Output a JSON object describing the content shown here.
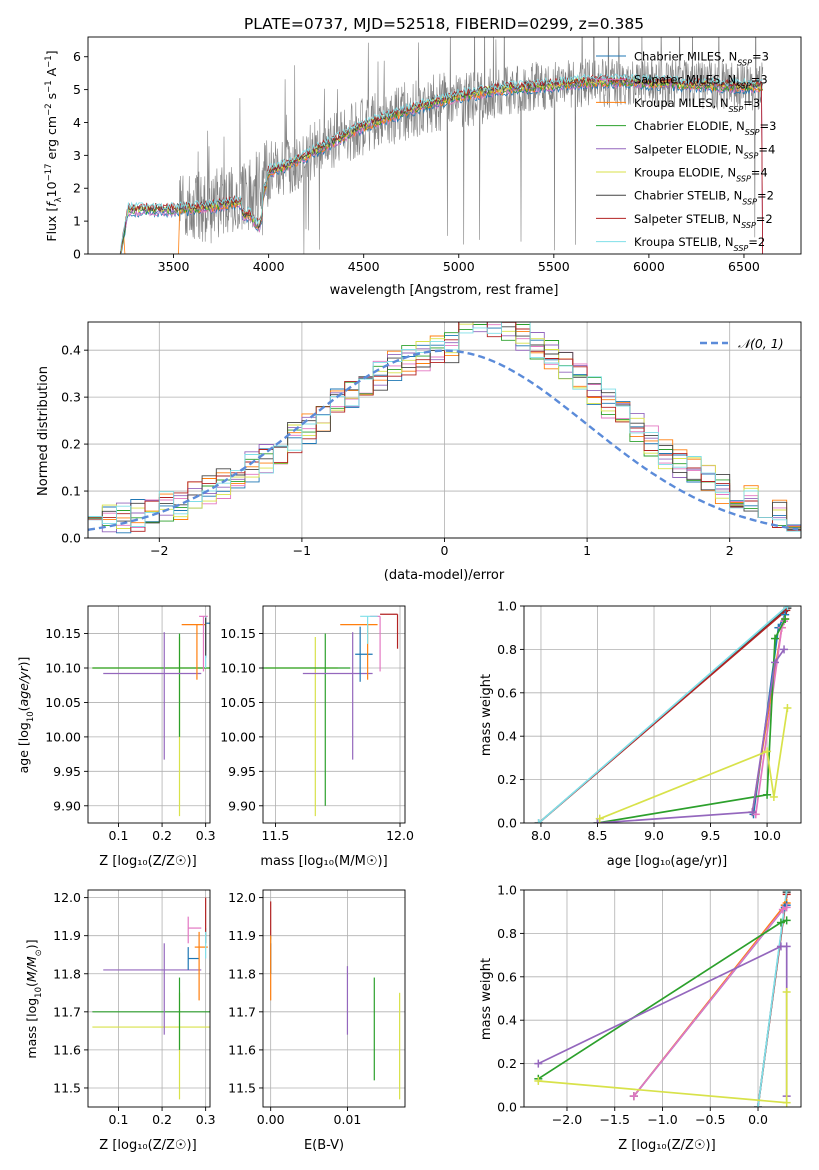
{
  "colors": {
    "Chabrier MILES": "#1f77b4",
    "Salpeter MILES": "#e377c2",
    "Kroupa MILES": "#ff7f0e",
    "Chabrier ELODIE": "#2ca02c",
    "Salpeter ELODIE": "#9467bd",
    "Kroupa ELODIE": "#d8e24a",
    "Chabrier STELIB": "#444444",
    "Salpeter STELIB": "#b22222",
    "Kroupa STELIB": "#7fdfe8",
    "data": "#808080",
    "normal": "#5b8bd9",
    "grid": "#b0b0b0"
  },
  "chart_data": [
    {
      "id": "spectrum",
      "type": "line",
      "title": "PLATE=0737, MJD=52518, FIBERID=0299, z=0.385",
      "xlabel": "wavelength [Angstrom, rest frame]",
      "ylabel": "Flux [f_λ 10^-17 erg cm^-2 s^-1 A^-1]",
      "xlim": [
        3050,
        6800
      ],
      "ylim": [
        0,
        6.6
      ],
      "xticks": [
        3500,
        4000,
        4500,
        5000,
        5500,
        6000,
        6500
      ],
      "yticks": [
        0,
        1,
        2,
        3,
        4,
        5,
        6
      ],
      "grid": false,
      "legend_position": "top-right",
      "legend": [
        {
          "label": "Chabrier MILES, N",
          "sub": "SSP",
          "suffix": "=3",
          "model": "Chabrier MILES"
        },
        {
          "label": "Salpeter MILES, N",
          "sub": "SSP",
          "suffix": "=3",
          "model": "Salpeter MILES"
        },
        {
          "label": "Kroupa MILES, N",
          "sub": "SSP",
          "suffix": "=3",
          "model": "Kroupa MILES"
        },
        {
          "label": "Chabrier ELODIE, N",
          "sub": "SSP",
          "suffix": "=3",
          "model": "Chabrier ELODIE"
        },
        {
          "label": "Salpeter ELODIE, N",
          "sub": "SSP",
          "suffix": "=4",
          "model": "Salpeter ELODIE"
        },
        {
          "label": "Kroupa ELODIE, N",
          "sub": "SSP",
          "suffix": "=4",
          "model": "Kroupa ELODIE"
        },
        {
          "label": "Chabrier STELIB, N",
          "sub": "SSP",
          "suffix": "=2",
          "model": "Chabrier STELIB"
        },
        {
          "label": "Salpeter STELIB, N",
          "sub": "SSP",
          "suffix": "=2",
          "model": "Salpeter STELIB"
        },
        {
          "label": "Kroupa STELIB, N",
          "sub": "SSP",
          "suffix": "=2",
          "model": "Kroupa STELIB"
        }
      ],
      "model_continuum": {
        "x": [
          3220,
          3260,
          3500,
          3700,
          3800,
          3900,
          3950,
          4000,
          4100,
          4200,
          4300,
          4400,
          4500,
          4600,
          4700,
          4800,
          4900,
          5000,
          5100,
          5200,
          5300,
          5400,
          5500,
          5600,
          5700,
          5800,
          5900,
          6000,
          6100,
          6200,
          6300,
          6400,
          6500,
          6600
        ],
        "y": [
          0.0,
          1.35,
          1.35,
          1.45,
          1.55,
          1.6,
          1.2,
          2.5,
          2.7,
          3.0,
          3.3,
          3.6,
          3.9,
          4.1,
          4.3,
          4.5,
          4.65,
          4.8,
          4.9,
          5.0,
          5.05,
          5.1,
          5.15,
          5.2,
          5.25,
          5.25,
          5.25,
          5.2,
          5.2,
          5.15,
          5.15,
          5.1,
          5.1,
          5.1
        ]
      },
      "data_envelope": {
        "x": [
          3530,
          3700,
          3800,
          3900,
          4000,
          4100,
          4200,
          4300,
          4400,
          4500,
          4600,
          4700,
          4800,
          4900,
          5000,
          5100,
          5200,
          5300,
          5400,
          5500,
          5600,
          5700,
          5800,
          5900,
          6000,
          6100,
          6200,
          6300,
          6400,
          6500,
          6600
        ],
        "y": [
          1.3,
          1.5,
          1.7,
          1.8,
          2.5,
          2.7,
          3.0,
          3.3,
          3.6,
          3.9,
          4.1,
          4.3,
          4.5,
          4.6,
          4.7,
          4.8,
          4.9,
          5.0,
          5.1,
          5.15,
          5.2,
          5.2,
          5.2,
          5.2,
          5.2,
          5.2,
          5.15,
          5.15,
          5.1,
          5.1,
          5.1
        ]
      }
    },
    {
      "id": "residuals",
      "type": "histogram",
      "xlabel": "(data-model)/error",
      "ylabel": "Normed distribution",
      "xlim": [
        -2.5,
        2.5
      ],
      "ylim": [
        0,
        0.46
      ],
      "xticks": [
        -2,
        -1,
        0,
        1,
        2
      ],
      "yticks": [
        0.0,
        0.1,
        0.2,
        0.3,
        0.4
      ],
      "grid": true,
      "legend_position": "top-right",
      "legend": [
        {
          "label": "𝒩(0, 1)",
          "style": "dashed"
        }
      ],
      "bin_width": 0.1
    },
    {
      "id": "age-vs-Z",
      "type": "errorbar",
      "xlabel": "Z [log₁₀(Z/Z☉)]",
      "ylabel": "age  [log₁₀(age/yr)]",
      "xlim": [
        0.03,
        0.31
      ],
      "ylim": [
        9.875,
        10.19
      ],
      "xticks": [
        0.1,
        0.2,
        0.3
      ],
      "yticks": [
        9.9,
        9.95,
        10.0,
        10.05,
        10.1,
        10.15
      ],
      "grid": true,
      "points": [
        {
          "model": "Kroupa ELODIE",
          "x": 0.24,
          "xerr": [
            0.2,
            0.07
          ],
          "y": 10.1,
          "yerr": [
            0.215,
            0.045
          ]
        },
        {
          "model": "Chabrier ELODIE",
          "x": 0.24,
          "xerr": [
            0.2,
            0.07
          ],
          "y": 10.1,
          "yerr": [
            0.1,
            0.05
          ]
        },
        {
          "model": "Salpeter ELODIE",
          "x": 0.205,
          "xerr": [
            0.14,
            0.085
          ],
          "y": 10.092,
          "yerr": [
            0.125,
            0.06
          ]
        },
        {
          "model": "Kroupa MILES",
          "x": 0.28,
          "xerr": [
            0.035,
            0.02
          ],
          "y": 10.163,
          "yerr": [
            0.08,
            0.0
          ]
        },
        {
          "model": "Chabrier MILES",
          "x": 0.3,
          "xerr": [
            0.0,
            0.01
          ],
          "y": 10.165,
          "yerr": [
            0.05,
            0.01
          ]
        },
        {
          "model": "Salpeter MILES",
          "x": 0.295,
          "xerr": [
            0.01,
            0.01
          ],
          "y": 10.175,
          "yerr": [
            0.08,
            0.0
          ]
        },
        {
          "model": "Salpeter STELIB",
          "x": 0.3,
          "xerr": [
            0.0,
            0.0
          ],
          "y": 10.165,
          "yerr": [
            0.04,
            0.01
          ]
        },
        {
          "model": "Kroupa STELIB",
          "x": 0.3,
          "xerr": [
            0.0,
            0.0
          ],
          "y": 10.17,
          "yerr": [
            0.07,
            0.005
          ]
        },
        {
          "model": "Chabrier STELIB",
          "x": 0.3,
          "xerr": [
            0.0,
            0.0
          ],
          "y": 10.168,
          "yerr": [
            0.05,
            0.005
          ]
        }
      ]
    },
    {
      "id": "age-vs-mass",
      "type": "errorbar",
      "xlabel": "mass [log₁₀(M/M☉)]",
      "ylabel": "",
      "xlim": [
        11.45,
        12.02
      ],
      "ylim": [
        9.875,
        10.19
      ],
      "xticks": [
        11.5,
        12.0
      ],
      "yticks": [
        9.9,
        9.95,
        10.0,
        10.05,
        10.1,
        10.15
      ],
      "grid": true,
      "points": [
        {
          "model": "Kroupa ELODIE",
          "x": 11.66,
          "xerr": [
            0.2,
            0.09
          ],
          "y": 10.1,
          "yerr": [
            0.215,
            0.045
          ]
        },
        {
          "model": "Chabrier ELODIE",
          "x": 11.7,
          "xerr": [
            0.25,
            0.1
          ],
          "y": 10.1,
          "yerr": [
            0.2,
            0.05
          ]
        },
        {
          "model": "Salpeter ELODIE",
          "x": 11.81,
          "xerr": [
            0.2,
            0.08
          ],
          "y": 10.092,
          "yerr": [
            0.125,
            0.06
          ]
        },
        {
          "model": "Chabrier MILES",
          "x": 11.84,
          "xerr": [
            0.02,
            0.05
          ],
          "y": 10.12,
          "yerr": [
            0.04,
            0.04
          ]
        },
        {
          "model": "Kroupa MILES",
          "x": 11.87,
          "xerr": [
            0.11,
            0.04
          ],
          "y": 10.163,
          "yerr": [
            0.08,
            0.0
          ]
        },
        {
          "model": "Salpeter MILES",
          "x": 11.92,
          "xerr": [
            0.04,
            0.0
          ],
          "y": 10.175,
          "yerr": [
            0.08,
            0.0
          ]
        },
        {
          "model": "Kroupa STELIB",
          "x": 11.87,
          "xerr": [
            0.03,
            0.04
          ],
          "y": 10.175,
          "yerr": [
            0.04,
            0.0
          ]
        },
        {
          "model": "Salpeter STELIB",
          "x": 11.99,
          "xerr": [
            0.07,
            0.0
          ],
          "y": 10.178,
          "yerr": [
            0.05,
            0.0
          ]
        }
      ]
    },
    {
      "id": "weight-vs-age",
      "type": "line",
      "xlabel": "age  [log₁₀(age/yr)]",
      "ylabel": "mass weight",
      "xlim": [
        7.85,
        10.3
      ],
      "ylim": [
        0,
        1
      ],
      "xticks": [
        8.0,
        8.5,
        9.0,
        9.5,
        10.0
      ],
      "yticks": [
        0.0,
        0.2,
        0.4,
        0.6,
        0.8,
        1.0
      ],
      "grid": true,
      "series": [
        {
          "model": "Chabrier STELIB",
          "x": [
            7.98,
            10.18
          ],
          "y": [
            0.0,
            0.99
          ]
        },
        {
          "model": "Salpeter STELIB",
          "x": [
            7.98,
            10.17
          ],
          "y": [
            0.0,
            0.98
          ]
        },
        {
          "model": "Kroupa STELIB",
          "x": [
            7.98,
            10.18
          ],
          "y": [
            0.0,
            1.0
          ]
        },
        {
          "model": "Chabrier MILES",
          "x": [
            9.88,
            10.1,
            10.16
          ],
          "y": [
            0.04,
            0.9,
            0.96
          ]
        },
        {
          "model": "Kroupa MILES",
          "x": [
            9.87,
            10.13,
            10.16
          ],
          "y": [
            0.05,
            0.9,
            0.94
          ]
        },
        {
          "model": "Salpeter MILES",
          "x": [
            9.9,
            10.13,
            10.15
          ],
          "y": [
            0.04,
            0.9,
            0.93
          ]
        },
        {
          "model": "Chabrier ELODIE",
          "x": [
            8.5,
            10.0,
            10.07,
            10.16
          ],
          "y": [
            0.0,
            0.13,
            0.85,
            0.94
          ]
        },
        {
          "model": "Salpeter ELODIE",
          "x": [
            8.5,
            9.87,
            10.07,
            10.15
          ],
          "y": [
            0.0,
            0.05,
            0.74,
            0.8
          ]
        },
        {
          "model": "Kroupa ELODIE",
          "x": [
            8.52,
            10.0,
            10.06,
            10.18
          ],
          "y": [
            0.02,
            0.33,
            0.12,
            0.53
          ]
        }
      ]
    },
    {
      "id": "mass-vs-Z",
      "type": "errorbar",
      "xlabel": "Z [log₁₀(Z/Z☉)]",
      "ylabel": "mass [log₁₀(M/M☉)]",
      "xlim": [
        0.03,
        0.31
      ],
      "ylim": [
        11.45,
        12.02
      ],
      "xticks": [
        0.1,
        0.2,
        0.3
      ],
      "yticks": [
        11.5,
        11.6,
        11.7,
        11.8,
        11.9,
        12.0
      ],
      "grid": true,
      "points": [
        {
          "model": "Kroupa ELODIE",
          "x": 0.24,
          "xerr": [
            0.2,
            0.07
          ],
          "y": 11.66,
          "yerr": [
            0.19,
            0.09
          ]
        },
        {
          "model": "Chabrier ELODIE",
          "x": 0.24,
          "xerr": [
            0.2,
            0.07
          ],
          "y": 11.7,
          "yerr": [
            0.1,
            0.09
          ]
        },
        {
          "model": "Salpeter ELODIE",
          "x": 0.205,
          "xerr": [
            0.14,
            0.085
          ],
          "y": 11.81,
          "yerr": [
            0.17,
            0.07
          ]
        },
        {
          "model": "Chabrier MILES",
          "x": 0.26,
          "xerr": [
            0.0,
            0.025
          ],
          "y": 11.84,
          "yerr": [
            0.03,
            0.03
          ]
        },
        {
          "model": "Kroupa MILES",
          "x": 0.285,
          "xerr": [
            0.01,
            0.02
          ],
          "y": 11.87,
          "yerr": [
            0.14,
            0.04
          ]
        },
        {
          "model": "Salpeter MILES",
          "x": 0.26,
          "xerr": [
            0.0,
            0.03
          ],
          "y": 11.92,
          "yerr": [
            0.04,
            0.03
          ]
        },
        {
          "model": "Chabrier STELIB",
          "x": 0.3,
          "xerr": [
            0.0,
            0.0
          ],
          "y": 11.91,
          "yerr": [
            0.03,
            0.0
          ]
        },
        {
          "model": "Kroupa STELIB",
          "x": 0.3,
          "xerr": [
            0.0,
            0.0
          ],
          "y": 11.88,
          "yerr": [
            0.04,
            0.04
          ]
        },
        {
          "model": "Salpeter STELIB",
          "x": 0.3,
          "xerr": [
            0.0,
            0.0
          ],
          "y": 11.99,
          "yerr": [
            0.08,
            0.01
          ]
        }
      ]
    },
    {
      "id": "mass-vs-EBV",
      "type": "errorbar",
      "xlabel": "E(B-V)",
      "ylabel": "",
      "xlim": [
        -0.001,
        0.0175
      ],
      "ylim": [
        11.45,
        12.02
      ],
      "xticks": [
        0.0,
        0.01
      ],
      "yticks": [
        11.5,
        11.6,
        11.7,
        11.8,
        11.9,
        12.0
      ],
      "grid": true,
      "points": [
        {
          "model": "Salpeter STELIB",
          "x": 0.0,
          "y": 11.93,
          "yerr": [
            0.04,
            0.06
          ]
        },
        {
          "model": "Kroupa STELIB",
          "x": 0.0,
          "y": 11.85,
          "yerr": [
            0.05,
            0.05
          ]
        },
        {
          "model": "Chabrier MILES",
          "x": 0.0,
          "y": 11.84,
          "yerr": [
            0.04,
            0.04
          ]
        },
        {
          "model": "Kroupa MILES",
          "x": 0.0,
          "y": 11.8,
          "yerr": [
            0.07,
            0.1
          ]
        },
        {
          "model": "Salpeter ELODIE",
          "x": 0.01,
          "y": 11.74,
          "yerr": [
            0.1,
            0.08
          ]
        },
        {
          "model": "Chabrier ELODIE",
          "x": 0.0135,
          "y": 11.66,
          "yerr": [
            0.14,
            0.13
          ]
        },
        {
          "model": "Kroupa ELODIE",
          "x": 0.0168,
          "y": 11.61,
          "yerr": [
            0.14,
            0.14
          ]
        }
      ]
    },
    {
      "id": "weight-vs-Z",
      "type": "line",
      "xlabel": "Z [log₁₀(Z/Z☉)]",
      "ylabel": "mass weight",
      "xlim": [
        -2.45,
        0.45
      ],
      "ylim": [
        0,
        1
      ],
      "xticks": [
        -2.0,
        -1.5,
        -1.0,
        -0.5,
        0.0
      ],
      "yticks": [
        0.0,
        0.2,
        0.4,
        0.6,
        0.8,
        1.0
      ],
      "grid": true,
      "series": [
        {
          "model": "Chabrier STELIB",
          "x": [
            0.0,
            0.3
          ],
          "y": [
            0.0,
            0.99
          ]
        },
        {
          "model": "Salpeter STELIB",
          "x": [
            0.0,
            0.3
          ],
          "y": [
            0.0,
            0.98
          ]
        },
        {
          "model": "Kroupa STELIB",
          "x": [
            0.0,
            0.3
          ],
          "y": [
            0.0,
            1.0
          ]
        },
        {
          "model": "Kroupa MILES",
          "x": [
            -1.3,
            0.28,
            0.3
          ],
          "y": [
            0.05,
            0.93,
            0.94
          ]
        },
        {
          "model": "Chabrier MILES",
          "x": [
            -1.3,
            0.28,
            0.3
          ],
          "y": [
            0.05,
            0.92,
            0.93
          ]
        },
        {
          "model": "Salpeter MILES",
          "x": [
            -1.3,
            0.26,
            0.3
          ],
          "y": [
            0.05,
            0.91,
            0.92
          ]
        },
        {
          "model": "Chabrier ELODIE",
          "x": [
            -2.3,
            0.24,
            0.3
          ],
          "y": [
            0.13,
            0.85,
            0.86
          ]
        },
        {
          "model": "Salpeter ELODIE",
          "x": [
            -2.3,
            0.24,
            0.3,
            0.3
          ],
          "y": [
            0.2,
            0.74,
            0.74,
            0.05
          ]
        },
        {
          "model": "Kroupa ELODIE",
          "x": [
            -2.3,
            0.3,
            0.3
          ],
          "y": [
            0.12,
            0.02,
            0.53
          ]
        }
      ]
    }
  ]
}
